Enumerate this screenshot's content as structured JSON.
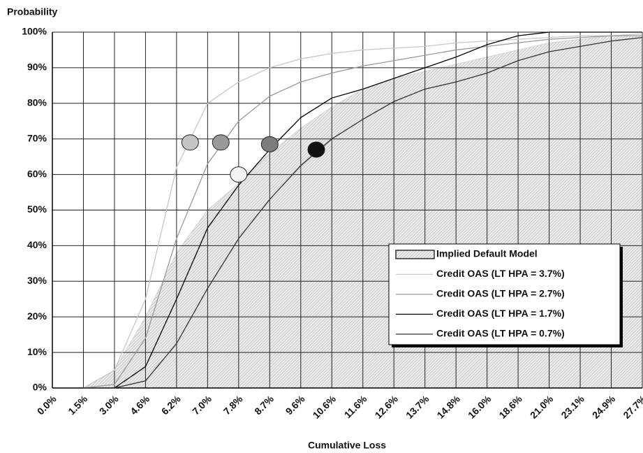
{
  "chart_data": {
    "type": "line",
    "title": "Probability",
    "x_label": "Cumulative Loss",
    "categories": [
      "0.0%",
      "1.5%",
      "3.0%",
      "4.6%",
      "6.2%",
      "7.0%",
      "7.8%",
      "8.7%",
      "9.6%",
      "10.6%",
      "11.6%",
      "12.6%",
      "13.7%",
      "14.8%",
      "16.0%",
      "18.6%",
      "21.0%",
      "23.1%",
      "24.9%",
      "27.7%"
    ],
    "ylim": [
      0,
      100
    ],
    "yticks": [
      {
        "value": 0,
        "label": "0%"
      },
      {
        "value": 10,
        "label": "10%"
      },
      {
        "value": 20,
        "label": "20%"
      },
      {
        "value": 30,
        "label": "30%"
      },
      {
        "value": 40,
        "label": "40%"
      },
      {
        "value": 50,
        "label": "50%"
      },
      {
        "value": 60,
        "label": "60%"
      },
      {
        "value": 70,
        "label": "70%"
      },
      {
        "value": 80,
        "label": "80%"
      },
      {
        "value": 90,
        "label": "90%"
      },
      {
        "value": 100,
        "label": "100%"
      }
    ],
    "grid": true,
    "legend": "right",
    "series": [
      {
        "name": "Implied Default Model",
        "kind": "area",
        "color": "#d4d4d4",
        "values": [
          null,
          0,
          5,
          20,
          38,
          50,
          57.5,
          66,
          73,
          79,
          84,
          87,
          89,
          91,
          93,
          95,
          97,
          98,
          99,
          99
        ]
      },
      {
        "name": "Credit OAS (LT HPA = 3.7%)",
        "color": "#c8c8c8",
        "values": [
          null,
          0,
          5,
          25,
          62,
          80,
          86,
          90,
          92.5,
          94,
          95,
          95.5,
          96,
          97,
          97.5,
          98,
          98.5,
          99,
          99,
          99.5
        ]
      },
      {
        "name": "Credit OAS (LT HPA = 2.7%)",
        "color": "#9a9a9a",
        "values": [
          null,
          0,
          1,
          14,
          42,
          63,
          75,
          82,
          86,
          88.5,
          90.5,
          92,
          93.5,
          95,
          96,
          97,
          98,
          98.5,
          99,
          99
        ]
      },
      {
        "name": "Credit OAS (LT HPA = 1.7%)",
        "color": "#000000",
        "values": [
          null,
          0,
          0,
          6,
          25,
          45,
          57,
          67,
          76,
          81.5,
          84,
          87,
          90,
          93,
          96.5,
          99,
          100,
          100,
          100,
          100
        ]
      },
      {
        "name": "Credit OAS (LT HPA = 0.7%)",
        "color": "#333333",
        "values": [
          null,
          0,
          0,
          2,
          12.5,
          28,
          42,
          53,
          62.5,
          70,
          75.5,
          80.5,
          84,
          86,
          88.5,
          92,
          94.5,
          96,
          97.5,
          98.5
        ]
      }
    ],
    "points": [
      {
        "x": 6.55,
        "y": 69,
        "color": "#c4c4c4"
      },
      {
        "x": 7.34,
        "y": 69,
        "color": "#999999"
      },
      {
        "x": 8.7,
        "y": 68.5,
        "color": "#7c7c7c"
      },
      {
        "x": 7.8,
        "y": 60,
        "color": "#f4f4f4"
      },
      {
        "x": 10.1,
        "y": 67,
        "color": "#111111"
      }
    ]
  }
}
